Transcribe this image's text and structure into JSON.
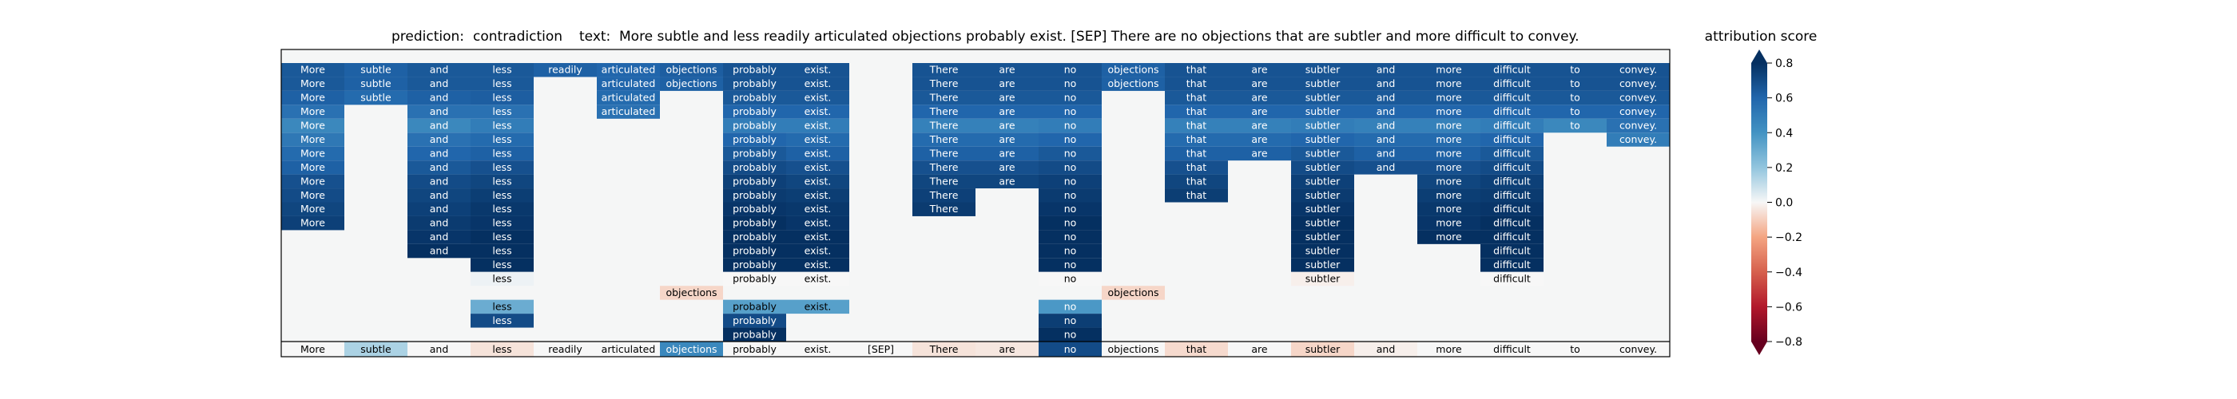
{
  "title": {
    "prediction_label": "prediction:",
    "prediction": "contradiction",
    "text_label": "text:",
    "text": "More subtle and less readily articulated objections probably exist. [SEP] There are no objections that are subtler and more difficult to convey."
  },
  "colorbar": {
    "title": "attribution score",
    "ticks": [
      "0.8",
      "0.6",
      "0.4",
      "0.2",
      "0.0",
      "−0.2",
      "−0.4",
      "−0.6",
      "−0.8"
    ]
  },
  "chart_data": {
    "type": "heatmap",
    "colormap": "RdBu",
    "vmin": -0.8,
    "vmax": 0.8,
    "tokens": [
      "More",
      "subtle",
      "and",
      "less",
      "readily",
      "articulated",
      "objections",
      "probably",
      "exist.",
      "[SEP]",
      "There",
      "are",
      "no",
      "objections",
      "that",
      "are",
      "subtler",
      "and",
      "more",
      "difficult",
      "to",
      "convey."
    ],
    "top_row_values": [
      0.0,
      0.15,
      0.0,
      -0.05,
      0.0,
      0.0,
      0.45,
      0.0,
      0.0,
      0.0,
      -0.05,
      -0.04,
      0.7,
      0.0,
      -0.07,
      0.0,
      -0.08,
      -0.02,
      0.0,
      0.0,
      0.0,
      0.0
    ],
    "rows": [
      [
        0.65,
        0.62,
        0.65,
        0.65,
        0.62,
        0.6,
        0.63,
        0.67,
        0.67,
        null,
        0.67,
        0.67,
        0.67,
        0.62,
        0.67,
        0.67,
        0.67,
        0.67,
        0.67,
        0.67,
        0.67,
        0.67
      ],
      [
        0.65,
        0.62,
        0.65,
        0.65,
        null,
        0.6,
        0.62,
        0.67,
        0.67,
        null,
        0.67,
        0.67,
        0.67,
        0.62,
        0.67,
        0.67,
        0.67,
        0.67,
        0.67,
        0.67,
        0.67,
        0.67
      ],
      [
        0.62,
        0.58,
        0.62,
        0.63,
        null,
        0.58,
        null,
        0.65,
        0.65,
        null,
        0.65,
        0.65,
        0.65,
        null,
        0.65,
        0.65,
        0.65,
        0.65,
        0.65,
        0.65,
        0.65,
        0.65
      ],
      [
        0.55,
        null,
        0.55,
        0.55,
        null,
        0.55,
        null,
        0.6,
        0.6,
        null,
        0.6,
        0.6,
        0.6,
        null,
        0.6,
        0.6,
        0.6,
        0.6,
        0.6,
        0.6,
        0.6,
        0.6
      ],
      [
        0.45,
        null,
        0.45,
        0.5,
        null,
        null,
        null,
        0.5,
        0.5,
        null,
        0.48,
        0.48,
        0.5,
        null,
        0.48,
        0.48,
        0.5,
        0.48,
        0.48,
        0.5,
        0.45,
        0.55
      ],
      [
        0.52,
        null,
        0.55,
        0.58,
        null,
        null,
        null,
        0.6,
        0.58,
        null,
        0.58,
        0.58,
        0.6,
        null,
        0.58,
        0.58,
        0.6,
        0.58,
        0.58,
        0.6,
        null,
        0.5
      ],
      [
        0.58,
        null,
        0.6,
        0.62,
        null,
        null,
        null,
        0.65,
        0.62,
        null,
        0.62,
        0.62,
        0.65,
        null,
        0.62,
        0.62,
        0.65,
        0.62,
        0.62,
        0.65,
        null,
        null
      ],
      [
        0.62,
        null,
        0.65,
        0.68,
        null,
        null,
        null,
        0.7,
        0.68,
        null,
        0.68,
        0.68,
        0.7,
        null,
        0.68,
        null,
        0.7,
        0.68,
        0.68,
        0.7,
        null,
        null
      ],
      [
        0.68,
        null,
        0.7,
        0.72,
        null,
        null,
        null,
        0.74,
        0.72,
        null,
        0.72,
        0.72,
        0.74,
        null,
        0.72,
        null,
        0.74,
        null,
        0.72,
        0.74,
        null,
        null
      ],
      [
        0.7,
        null,
        0.72,
        0.75,
        null,
        null,
        null,
        0.76,
        0.75,
        null,
        0.74,
        null,
        0.76,
        null,
        0.75,
        null,
        0.76,
        null,
        0.75,
        0.76,
        null,
        null
      ],
      [
        0.72,
        null,
        0.74,
        0.77,
        null,
        null,
        null,
        0.78,
        0.77,
        null,
        0.76,
        null,
        0.78,
        null,
        null,
        null,
        0.78,
        null,
        0.77,
        0.78,
        null,
        null
      ],
      [
        0.74,
        null,
        0.76,
        0.78,
        null,
        null,
        null,
        0.8,
        0.78,
        null,
        null,
        null,
        0.8,
        null,
        null,
        null,
        0.8,
        null,
        0.78,
        0.8,
        null,
        null
      ],
      [
        null,
        null,
        0.78,
        0.8,
        null,
        null,
        null,
        0.82,
        0.8,
        null,
        null,
        null,
        0.82,
        null,
        null,
        null,
        0.82,
        null,
        0.8,
        0.82,
        null,
        null
      ],
      [
        null,
        null,
        0.8,
        0.82,
        null,
        null,
        null,
        0.84,
        0.82,
        null,
        null,
        null,
        0.84,
        null,
        null,
        null,
        0.84,
        null,
        null,
        0.84,
        null,
        null
      ],
      [
        null,
        null,
        null,
        0.84,
        null,
        null,
        null,
        0.86,
        0.84,
        null,
        null,
        null,
        0.86,
        null,
        null,
        null,
        0.86,
        null,
        null,
        0.86,
        null,
        null
      ],
      [
        null,
        null,
        null,
        0.02,
        null,
        null,
        null,
        0.0,
        0.0,
        null,
        null,
        null,
        0.0,
        null,
        null,
        null,
        -0.02,
        null,
        null,
        0.0,
        null,
        null
      ],
      [
        null,
        null,
        null,
        null,
        null,
        null,
        -0.08,
        null,
        null,
        null,
        null,
        null,
        null,
        -0.08,
        null,
        null,
        null,
        null,
        null,
        null,
        null,
        null
      ],
      [
        null,
        null,
        null,
        0.3,
        null,
        null,
        null,
        0.35,
        0.35,
        null,
        null,
        null,
        0.38,
        null,
        null,
        null,
        null,
        null,
        null,
        null,
        null,
        null
      ],
      [
        null,
        null,
        null,
        0.7,
        null,
        null,
        null,
        0.7,
        null,
        null,
        null,
        null,
        0.75,
        null,
        null,
        null,
        null,
        null,
        null,
        null,
        null,
        null
      ],
      [
        null,
        null,
        null,
        null,
        null,
        null,
        null,
        0.95,
        null,
        null,
        null,
        null,
        0.95,
        null,
        null,
        null,
        null,
        null,
        null,
        null,
        null,
        null
      ]
    ]
  }
}
